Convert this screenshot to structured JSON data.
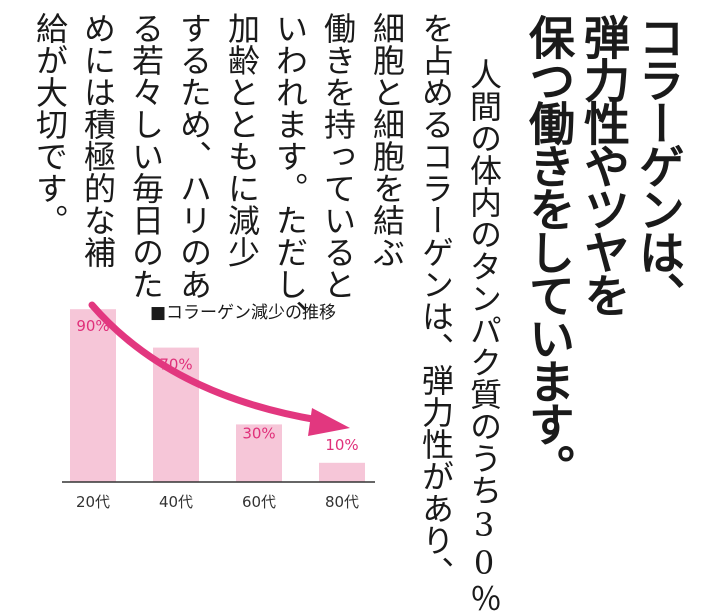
{
  "heading": {
    "lines": [
      "コラーゲンは、",
      "弾力性やツヤを",
      "保つ働きをしています。"
    ]
  },
  "body": {
    "lines": [
      "人間の体内のタンパク質のうち30％",
      "を占めるコラーゲンは、弾力性があり、",
      "細胞と細胞を結ぶ",
      "働きを持っていると",
      "いわれます。ただし、",
      "加齢とともに減少",
      "するため、ハリのあ",
      "る若々しい毎日のた",
      "めには積極的な補",
      "給が大切です。"
    ]
  },
  "colors": {
    "bar": "#f6c6d8",
    "arrow": "#e2377f",
    "value_label": "#e0307a",
    "axis": "#333333",
    "text": "#1a1a1a"
  },
  "chart_data": {
    "type": "bar",
    "title": "■コラーゲン減少の推移",
    "categories": [
      "20代",
      "40代",
      "60代",
      "80代"
    ],
    "values": [
      90,
      70,
      30,
      10
    ],
    "value_labels": [
      "90%",
      "70%",
      "30%",
      "10%"
    ],
    "unit": "%",
    "ylim": [
      0,
      100
    ],
    "grid": false,
    "annotation": "downward-trend-arrow"
  }
}
